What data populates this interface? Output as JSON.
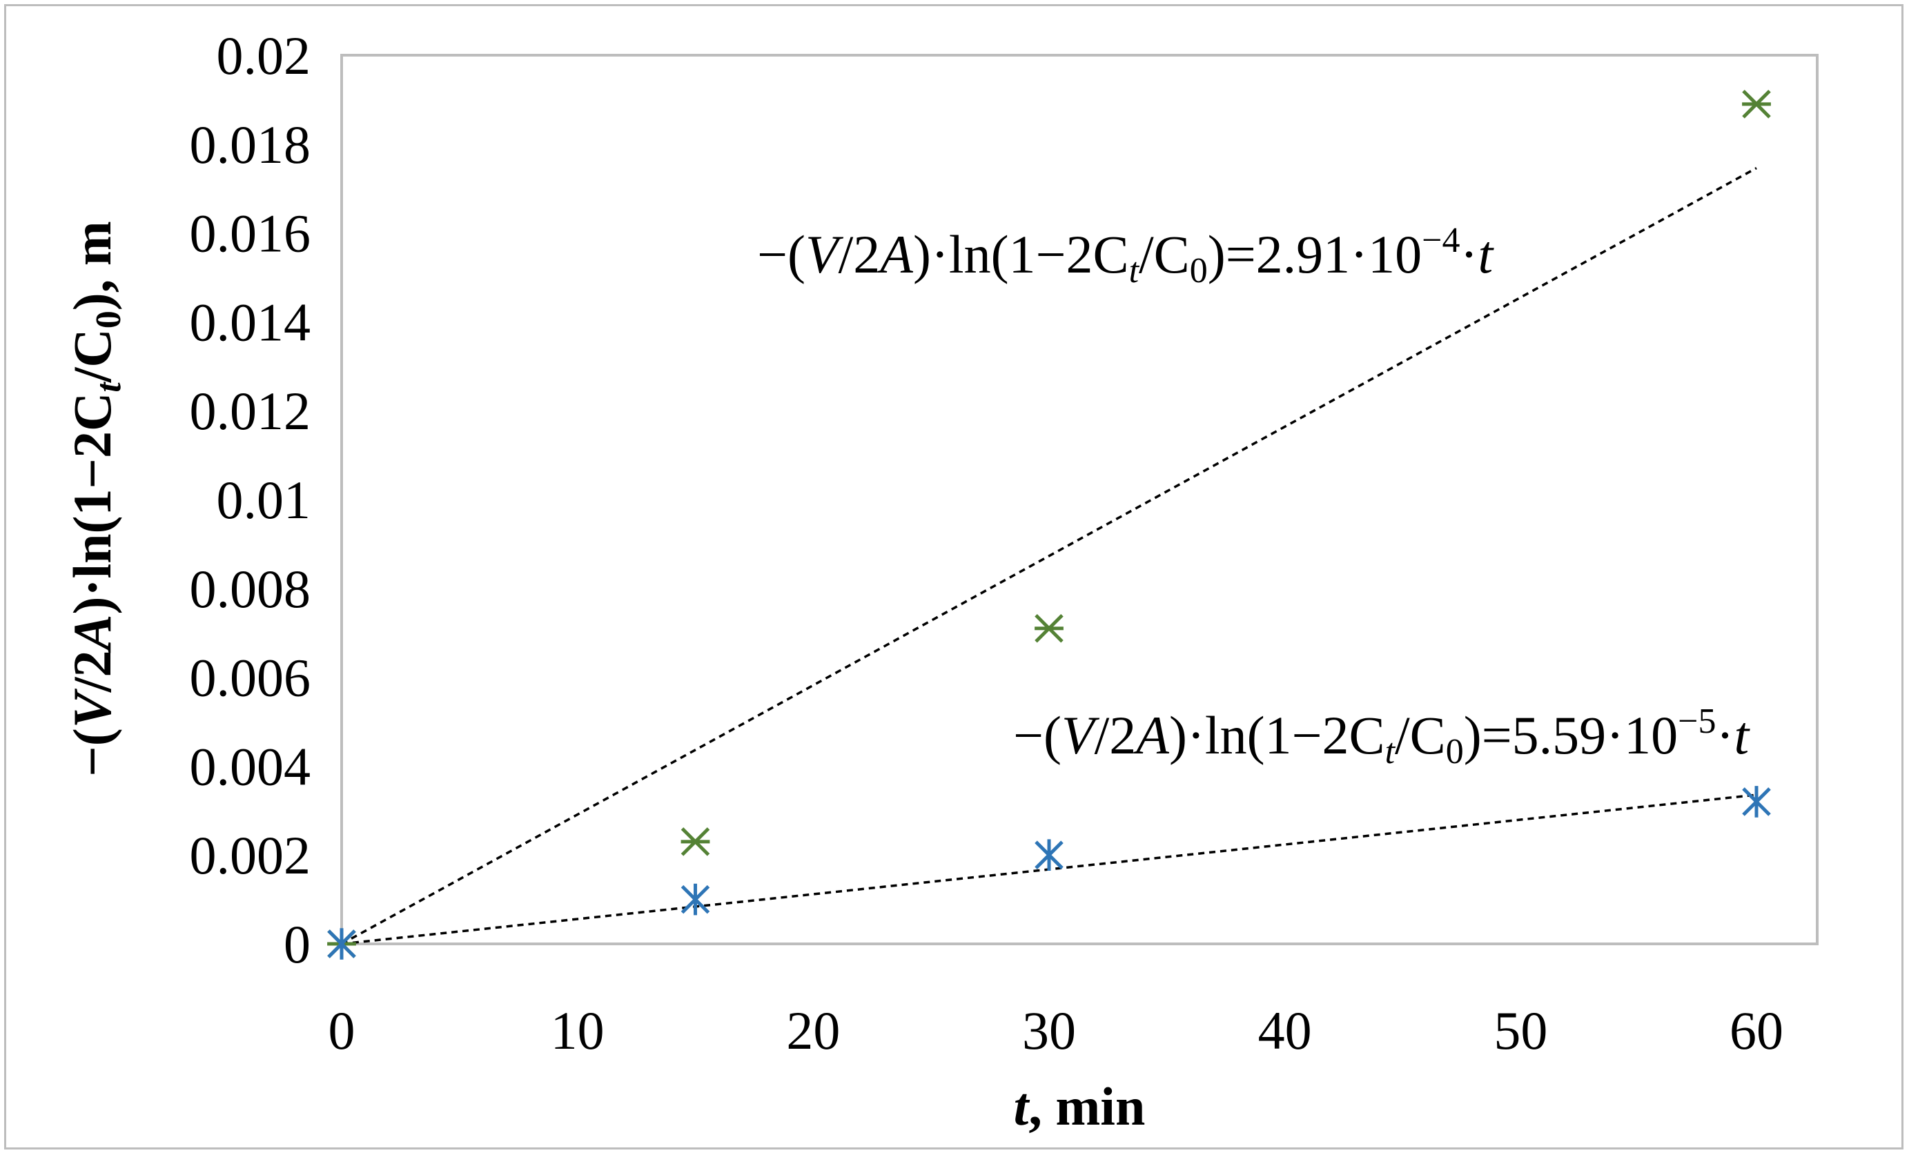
{
  "chart_data": {
    "type": "scatter",
    "xlabel": {
      "var": "t",
      "rest": ", min"
    },
    "ylabel": {
      "p1": "−(",
      "p2": "V",
      "p3": "/2",
      "p4": "A",
      "p5": ")·ln(1−2C",
      "p6": "t",
      "p7": "/C",
      "p8": "0",
      "p9": "), m"
    },
    "xlim": [
      0,
      60
    ],
    "ylim": [
      0,
      0.02
    ],
    "x_ticks": [
      "0",
      "10",
      "20",
      "30",
      "40",
      "50",
      "60"
    ],
    "y_ticks": [
      "0",
      "0.002",
      "0.004",
      "0.006",
      "0.008",
      "0.01",
      "0.012",
      "0.014",
      "0.016",
      "0.018",
      "0.02"
    ],
    "grid": false,
    "series": [
      {
        "color": "#548235",
        "marker": "asterisk",
        "x": [
          0,
          15,
          30,
          60
        ],
        "y": [
          0,
          0.0023,
          0.0071,
          0.0189
        ],
        "fit_slope": 0.000291,
        "equation": {
          "p1": "−(",
          "p2": "V",
          "p3": "/2",
          "p4": "A",
          "p5": ")·ln(1−2C",
          "p6": "t",
          "p7": "/C",
          "p8": "0",
          "p9": ")=2.91·10",
          "p10": "−4",
          "p11": "·",
          "p12": "t"
        }
      },
      {
        "color": "#2e75b6",
        "marker": "star",
        "x": [
          0,
          15,
          30,
          60
        ],
        "y": [
          0,
          0.001,
          0.002,
          0.0032
        ],
        "fit_slope": 5.59e-05,
        "equation": {
          "p1": "−(",
          "p2": "V",
          "p3": "/2",
          "p4": "A",
          "p5": ")·ln(1−2C",
          "p6": "t",
          "p7": "/C",
          "p8": "0",
          "p9": ")=5.59·10",
          "p10": "−5",
          "p11": "·",
          "p12": "t"
        }
      }
    ]
  }
}
